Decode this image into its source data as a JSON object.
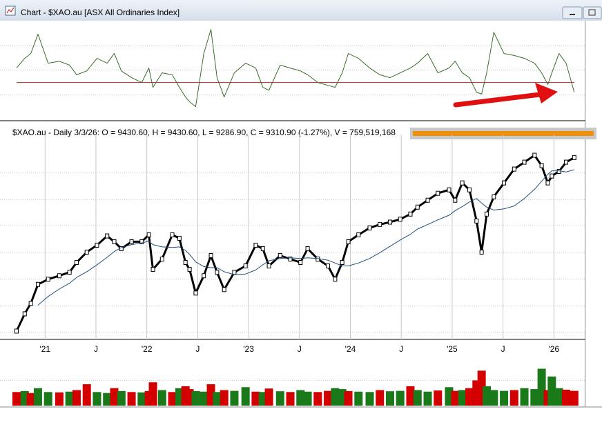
{
  "window": {
    "title": "Chart - $XAO.au [ASX All Ordinaries Index]"
  },
  "header": {
    "text": "$XAO.au - Daily 3/3/26:  O = 9430.60,  H = 9430.60,  L = 9286.90,  C = 9310.90 (-1.27%), V = 759,519,168"
  },
  "chart_data": [
    {
      "type": "line",
      "xlim": [
        2020.72,
        2026.31
      ],
      "ylim": [
        -36,
        64
      ],
      "yticks": [
        -13,
        13,
        38
      ],
      "grid": true,
      "reference": 0,
      "reference_color": "#b22222",
      "x": [
        2020.72,
        2020.8,
        2020.86,
        2020.93,
        2021.03,
        2021.14,
        2021.24,
        2021.31,
        2021.41,
        2021.51,
        2021.61,
        2021.68,
        2021.75,
        2021.85,
        2021.95,
        2022.02,
        2022.06,
        2022.15,
        2022.25,
        2022.32,
        2022.38,
        2022.42,
        2022.48,
        2022.56,
        2022.63,
        2022.69,
        2022.76,
        2022.86,
        2022.97,
        2023.07,
        2023.14,
        2023.2,
        2023.31,
        2023.41,
        2023.51,
        2023.58,
        2023.68,
        2023.78,
        2023.85,
        2023.92,
        2023.98,
        2024.08,
        2024.19,
        2024.29,
        2024.39,
        2024.49,
        2024.59,
        2024.66,
        2024.76,
        2024.86,
        2024.97,
        2025.03,
        2025.1,
        2025.17,
        2025.24,
        2025.29,
        2025.34,
        2025.41,
        2025.51,
        2025.61,
        2025.71,
        2025.81,
        2025.88,
        2025.94,
        2025.98,
        2026.05,
        2026.12,
        2026.2
      ],
      "series": [
        {
          "color": "#3a6b2a",
          "values": [
            15,
            25,
            30,
            50,
            20,
            22,
            18,
            8,
            12,
            25,
            20,
            30,
            12,
            5,
            0,
            15,
            -5,
            10,
            8,
            -5,
            -15,
            -20,
            -25,
            30,
            55,
            5,
            -15,
            10,
            20,
            15,
            -5,
            -8,
            18,
            15,
            12,
            8,
            0,
            -3,
            -5,
            10,
            30,
            25,
            15,
            8,
            5,
            10,
            15,
            20,
            30,
            10,
            15,
            22,
            10,
            5,
            -10,
            -12,
            10,
            52,
            30,
            28,
            25,
            20,
            10,
            -2,
            10,
            30,
            20,
            -10
          ]
        }
      ]
    },
    {
      "type": "line",
      "xlim": [
        2020.72,
        2026.31
      ],
      "ylim": [
        6180,
        9590
      ],
      "yticks": [
        6280,
        6740,
        7200,
        7660,
        8130,
        8580,
        9050
      ],
      "grid": true,
      "xticks": [
        {
          "value": 2021,
          "label": "'21"
        },
        {
          "value": 2021.5,
          "label": "J"
        },
        {
          "value": 2022,
          "label": "'22"
        },
        {
          "value": 2022.5,
          "label": "J"
        },
        {
          "value": 2023,
          "label": "'23"
        },
        {
          "value": 2023.5,
          "label": "J"
        },
        {
          "value": 2024,
          "label": "'24"
        },
        {
          "value": 2024.5,
          "label": "J"
        },
        {
          "value": 2025,
          "label": "'25"
        },
        {
          "value": 2025.5,
          "label": "J"
        },
        {
          "value": 2026,
          "label": "'26"
        }
      ],
      "x": [
        2020.72,
        2020.8,
        2020.86,
        2020.93,
        2021.03,
        2021.14,
        2021.24,
        2021.31,
        2021.41,
        2021.51,
        2021.61,
        2021.68,
        2021.75,
        2021.85,
        2021.95,
        2022.02,
        2022.06,
        2022.15,
        2022.25,
        2022.32,
        2022.38,
        2022.42,
        2022.48,
        2022.56,
        2022.63,
        2022.69,
        2022.76,
        2022.86,
        2022.97,
        2023.07,
        2023.14,
        2023.2,
        2023.31,
        2023.41,
        2023.51,
        2023.58,
        2023.68,
        2023.78,
        2023.85,
        2023.92,
        2023.98,
        2024.08,
        2024.19,
        2024.29,
        2024.39,
        2024.49,
        2024.59,
        2024.66,
        2024.76,
        2024.86,
        2024.97,
        2025.03,
        2025.1,
        2025.17,
        2025.24,
        2025.29,
        2025.34,
        2025.41,
        2025.51,
        2025.61,
        2025.71,
        2025.81,
        2025.88,
        2025.94,
        2025.98,
        2026.05,
        2026.12,
        2026.2
      ],
      "series": [
        {
          "color": "#000000",
          "values": [
            6300,
            6600,
            6780,
            7110,
            7200,
            7260,
            7320,
            7490,
            7670,
            7790,
            7950,
            7850,
            7730,
            7850,
            7850,
            7970,
            7370,
            7550,
            7970,
            7910,
            7490,
            7370,
            6960,
            7260,
            7610,
            7320,
            7020,
            7320,
            7430,
            7790,
            7730,
            7430,
            7610,
            7550,
            7490,
            7730,
            7550,
            7430,
            7200,
            7490,
            7850,
            7970,
            8090,
            8150,
            8190,
            8240,
            8330,
            8450,
            8570,
            8690,
            8750,
            8570,
            8870,
            8750,
            8210,
            7670,
            8330,
            8630,
            8870,
            9110,
            9230,
            9350,
            9170,
            8870,
            8990,
            9070,
            9230,
            9310
          ]
        },
        {
          "color": "#1f4e79",
          "values": [
            null,
            null,
            null,
            6750,
            6900,
            7030,
            7130,
            7230,
            7330,
            7450,
            7580,
            7680,
            7750,
            7800,
            7830,
            7860,
            7800,
            7760,
            7750,
            7760,
            7700,
            7630,
            7500,
            7420,
            7400,
            7400,
            7330,
            7280,
            7290,
            7360,
            7450,
            7520,
            7560,
            7570,
            7560,
            7570,
            7560,
            7530,
            7480,
            7430,
            7430,
            7480,
            7560,
            7660,
            7770,
            7880,
            7980,
            8070,
            8150,
            8230,
            8310,
            8390,
            8460,
            8540,
            8600,
            8520,
            8450,
            8400,
            8420,
            8470,
            8600,
            8760,
            8900,
            9020,
            9080,
            9080,
            9060,
            9100
          ]
        }
      ]
    },
    {
      "type": "bar",
      "xlim": [
        2020.72,
        2026.31
      ],
      "ylim": [
        0,
        2700000000
      ],
      "yticks": [
        1300000000
      ],
      "grid": true,
      "x": [
        2020.72,
        2020.8,
        2020.86,
        2020.93,
        2021.03,
        2021.14,
        2021.24,
        2021.31,
        2021.41,
        2021.51,
        2021.61,
        2021.68,
        2021.75,
        2021.85,
        2021.95,
        2022.02,
        2022.06,
        2022.15,
        2022.25,
        2022.32,
        2022.38,
        2022.42,
        2022.48,
        2022.56,
        2022.63,
        2022.69,
        2022.76,
        2022.86,
        2022.97,
        2023.07,
        2023.14,
        2023.2,
        2023.31,
        2023.41,
        2023.51,
        2023.58,
        2023.68,
        2023.78,
        2023.85,
        2023.92,
        2023.98,
        2024.08,
        2024.19,
        2024.29,
        2024.39,
        2024.49,
        2024.59,
        2024.66,
        2024.76,
        2024.86,
        2024.97,
        2025.03,
        2025.1,
        2025.17,
        2025.24,
        2025.29,
        2025.34,
        2025.41,
        2025.51,
        2025.61,
        2025.71,
        2025.81,
        2025.88,
        2025.94,
        2025.98,
        2026.05,
        2026.12,
        2026.2
      ],
      "values": [
        700000000,
        750000000,
        650000000,
        900000000,
        700000000,
        680000000,
        720000000,
        800000000,
        1100000000,
        700000000,
        650000000,
        900000000,
        750000000,
        700000000,
        680000000,
        750000000,
        1200000000,
        800000000,
        700000000,
        900000000,
        1000000000,
        850000000,
        750000000,
        720000000,
        1100000000,
        700000000,
        800000000,
        760000000,
        950000000,
        720000000,
        700000000,
        880000000,
        740000000,
        700000000,
        800000000,
        720000000,
        700000000,
        760000000,
        900000000,
        850000000,
        750000000,
        720000000,
        700000000,
        800000000,
        740000000,
        760000000,
        1000000000,
        800000000,
        720000000,
        780000000,
        950000000,
        760000000,
        800000000,
        900000000,
        1300000000,
        1800000000,
        1000000000,
        800000000,
        760000000,
        800000000,
        900000000,
        850000000,
        1900000000,
        800000000,
        1500000000,
        900000000,
        820000000,
        759519168
      ],
      "colors": [
        "#d40000",
        "#1a7a1a",
        "#d40000",
        "#1a7a1a",
        "#1a7a1a",
        "#d40000",
        "#1a7a1a",
        "#d40000",
        "#d40000",
        "#1a7a1a",
        "#1a7a1a",
        "#d40000",
        "#1a7a1a",
        "#d40000",
        "#1a7a1a",
        "#d40000",
        "#d40000",
        "#1a7a1a",
        "#d40000",
        "#1a7a1a",
        "#d40000",
        "#d40000",
        "#1a7a1a",
        "#1a7a1a",
        "#d40000",
        "#1a7a1a",
        "#d40000",
        "#1a7a1a",
        "#1a7a1a",
        "#d40000",
        "#1a7a1a",
        "#d40000",
        "#1a7a1a",
        "#d40000",
        "#1a7a1a",
        "#1a7a1a",
        "#d40000",
        "#d40000",
        "#1a7a1a",
        "#1a7a1a",
        "#d40000",
        "#1a7a1a",
        "#1a7a1a",
        "#d40000",
        "#1a7a1a",
        "#1a7a1a",
        "#d40000",
        "#1a7a1a",
        "#1a7a1a",
        "#d40000",
        "#1a7a1a",
        "#d40000",
        "#1a7a1a",
        "#d40000",
        "#d40000",
        "#d40000",
        "#1a7a1a",
        "#1a7a1a",
        "#1a7a1a",
        "#d40000",
        "#1a7a1a",
        "#1a7a1a",
        "#1a7a1a",
        "#d40000",
        "#1a7a1a",
        "#1a7a1a",
        "#d40000",
        "#d40000"
      ]
    }
  ]
}
